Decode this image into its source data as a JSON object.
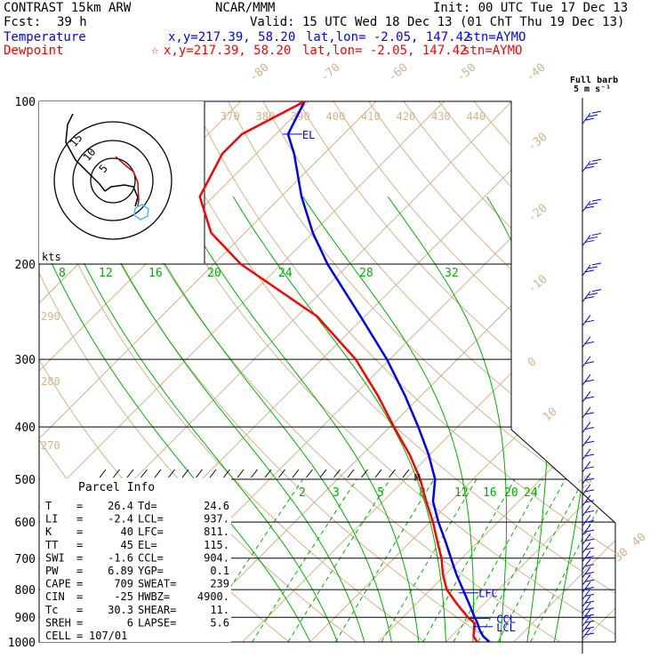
{
  "header": {
    "model": "CONTRAST 15km ARW",
    "org": "NCAR/MMM",
    "init": "Init: 00 UTC Tue 17 Dec 13",
    "fcst_label": "Fcst:",
    "fcst_value": "39 h",
    "valid": "Valid: 15 UTC Wed 18 Dec 13 (01 ChT Thu 19 Dec 13)",
    "temp_label": "Temperature",
    "temp_xy": "x,y=217.39, 58.20",
    "temp_latlon": "lat,lon= -2.05, 147.42",
    "temp_stn": "stn=AYMO",
    "dew_label": "Dewpoint",
    "dew_marker": "☆",
    "dew_xy": "x,y=217.39, 58.20",
    "dew_latlon": "lat,lon= -2.05, 147.42",
    "dew_stn": "stn=AYMO"
  },
  "colors": {
    "temperature": "#0000ff",
    "dewpoint": "#ff0000",
    "isotherm": "#d2b48c",
    "dry_adiabat": "#d2b48c",
    "moist_adiabat": "#00b000",
    "mixing_ratio": "#00b000",
    "isobar": "#000000",
    "hodograph_highlight": "#40c0ff"
  },
  "wind_panel": {
    "title_line1": "Full barb",
    "title_line2": "5 m s⁻¹"
  },
  "hodograph": {
    "unit": "kts",
    "ring_labels": [
      "5",
      "10",
      "15"
    ]
  },
  "parcel_info": {
    "title": "Parcel Info",
    "rows": [
      [
        "T",
        "26.4",
        "Td",
        "24.6"
      ],
      [
        "LI",
        "-2.4",
        "LCL",
        "937."
      ],
      [
        "K",
        "40",
        "LFC",
        "811."
      ],
      [
        "TT",
        "45",
        "EL",
        "115."
      ],
      [
        "SWI",
        "-1.6",
        "CCL",
        "904."
      ],
      [
        "PW",
        "6.89",
        "YGP",
        "0.1"
      ],
      [
        "CAPE",
        "709",
        "SWEAT",
        "239"
      ],
      [
        "CIN",
        "-25",
        "HWBZ",
        "4900."
      ],
      [
        "Tc",
        "30.3",
        "SHEAR",
        "11."
      ],
      [
        "SREH",
        "6",
        "LAPSE",
        "5.6"
      ],
      [
        "CELL",
        "107/01",
        "",
        ""
      ]
    ]
  },
  "chart_data": {
    "type": "line",
    "title": "",
    "pressure_levels": [
      100,
      200,
      300,
      400,
      500,
      600,
      700,
      800,
      900,
      1000
    ],
    "pressure_labels": [
      "100",
      "200",
      "300",
      "400",
      "500",
      "600",
      "700",
      "800",
      "900",
      "1000"
    ],
    "isotherm_labels": [
      "-80",
      "-70",
      "-60",
      "-50",
      "-40",
      "-30",
      "-20",
      "-10",
      "0",
      "10",
      "20",
      "30",
      "40"
    ],
    "theta_labels": [
      "370",
      "380",
      "390",
      "400",
      "410",
      "420",
      "430",
      "440"
    ],
    "theta_labels_left": [
      "290",
      "280",
      "270"
    ],
    "moist_labels_upper": [
      "8",
      "12",
      "16",
      "20",
      "24",
      "28",
      "32"
    ],
    "mixing_ratio_labels": [
      "2",
      "3",
      "5",
      "8",
      "12",
      "16",
      "20",
      "24"
    ],
    "level_markers": [
      "EL",
      "LFC",
      "CCL",
      "LCL",
      "M"
    ],
    "series": [
      {
        "name": "Temperature",
        "points": [
          [
            1000,
            26.4
          ],
          [
            975,
            24.6
          ],
          [
            950,
            23.2
          ],
          [
            925,
            22.0
          ],
          [
            900,
            20.6
          ],
          [
            850,
            17.8
          ],
          [
            800,
            14.8
          ],
          [
            750,
            11.6
          ],
          [
            700,
            8.4
          ],
          [
            650,
            5.0
          ],
          [
            600,
            1.2
          ],
          [
            550,
            -2.6
          ],
          [
            500,
            -5.6
          ],
          [
            450,
            -10.2
          ],
          [
            400,
            -15.8
          ],
          [
            350,
            -22.4
          ],
          [
            300,
            -30.4
          ],
          [
            250,
            -40.6
          ],
          [
            200,
            -53.2
          ],
          [
            175,
            -60.0
          ],
          [
            150,
            -67.0
          ],
          [
            125,
            -74.4
          ],
          [
            115,
            -78.2
          ],
          [
            100,
            -80.6
          ]
        ]
      },
      {
        "name": "Dewpoint",
        "points": [
          [
            1000,
            24.6
          ],
          [
            975,
            23.2
          ],
          [
            950,
            22.4
          ],
          [
            925,
            21.6
          ],
          [
            900,
            19.6
          ],
          [
            850,
            16.0
          ],
          [
            800,
            12.4
          ],
          [
            750,
            9.6
          ],
          [
            700,
            7.0
          ],
          [
            650,
            3.8
          ],
          [
            600,
            0.4
          ],
          [
            550,
            -3.6
          ],
          [
            500,
            -7.8
          ],
          [
            450,
            -13.0
          ],
          [
            400,
            -19.4
          ],
          [
            350,
            -26.4
          ],
          [
            300,
            -35.0
          ],
          [
            250,
            -47.0
          ],
          [
            200,
            -66.0
          ],
          [
            175,
            -75.0
          ],
          [
            150,
            -82.0
          ],
          [
            125,
            -85.0
          ],
          [
            115,
            -85.0
          ],
          [
            100,
            -80.6
          ]
        ]
      }
    ],
    "axis_p_range": [
      1000,
      100
    ],
    "axis_t_range_at_1000": [
      -40,
      45
    ],
    "log_pressure": true,
    "grid": true
  }
}
